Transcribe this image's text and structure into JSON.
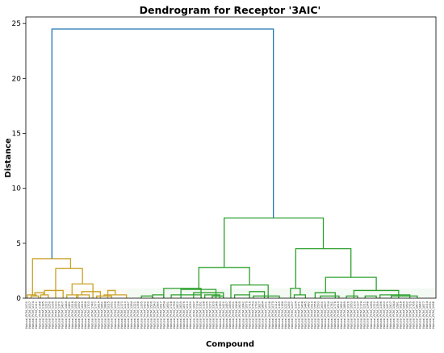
{
  "chart_data": {
    "type": "dendrogram",
    "title": "Dendrogram for Receptor '3AIC'",
    "xlabel": "Compound",
    "ylabel": "Distance",
    "ylim": [
      0,
      25.6
    ],
    "yticks": [
      0,
      5,
      10,
      15,
      20,
      25
    ],
    "grid": false,
    "leaf_label_prefix": "Natural_PCM_",
    "n_leaves": 125,
    "clusters": [
      {
        "color": "#c9a227",
        "leaf_range": [
          0,
          30
        ],
        "top_merge": 3.6
      },
      {
        "color": "#2ca02c",
        "leaf_range": [
          31,
          124
        ],
        "top_merge": 7.3
      }
    ],
    "links": [
      {
        "x1": 2,
        "x2": 14,
        "h": 0.3,
        "c": 0
      },
      {
        "x1": 7,
        "x2": 17,
        "h": 0.2,
        "c": 0
      },
      {
        "x1": 12,
        "x2": 24,
        "h": 0.5,
        "c": 0
      },
      {
        "x1": 20,
        "x2": 30,
        "h": 0.3,
        "c": 0
      },
      {
        "x1": 25,
        "x2": 50,
        "h": 0.7,
        "c": 0
      },
      {
        "x1": 55,
        "x2": 70,
        "h": 0.3,
        "c": 0
      },
      {
        "x1": 68,
        "x2": 85,
        "h": 0.3,
        "c": 0
      },
      {
        "x1": 75,
        "x2": 100,
        "h": 0.6,
        "c": 0
      },
      {
        "x1": 62,
        "x2": 90,
        "h": 1.3,
        "c": 0
      },
      {
        "x1": 95,
        "x2": 115,
        "h": 0.2,
        "c": 0
      },
      {
        "x1": 105,
        "x2": 135,
        "h": 0.3,
        "c": 0
      },
      {
        "x1": 110,
        "x2": 120,
        "h": 0.7,
        "c": 0
      },
      {
        "x1": 40,
        "x2": 76,
        "h": 2.7,
        "c": 0
      },
      {
        "x1": 9,
        "x2": 60,
        "h": 3.6,
        "c": 0
      },
      {
        "x1": 155,
        "x2": 170,
        "h": 0.2,
        "c": 1
      },
      {
        "x1": 170,
        "x2": 185,
        "h": 0.3,
        "c": 1
      },
      {
        "x1": 185,
        "x2": 235,
        "h": 0.9,
        "c": 1
      },
      {
        "x1": 195,
        "x2": 235,
        "h": 0.3,
        "c": 1
      },
      {
        "x1": 225,
        "x2": 265,
        "h": 0.5,
        "c": 1
      },
      {
        "x1": 240,
        "x2": 260,
        "h": 0.3,
        "c": 1
      },
      {
        "x1": 250,
        "x2": 265,
        "h": 0.2,
        "c": 1
      },
      {
        "x1": 208,
        "x2": 255,
        "h": 0.8,
        "c": 1
      },
      {
        "x1": 275,
        "x2": 325,
        "h": 1.2,
        "c": 1
      },
      {
        "x1": 280,
        "x2": 300,
        "h": 0.3,
        "c": 1
      },
      {
        "x1": 300,
        "x2": 320,
        "h": 0.6,
        "c": 1
      },
      {
        "x1": 305,
        "x2": 340,
        "h": 0.2,
        "c": 1
      },
      {
        "x1": 232,
        "x2": 300,
        "h": 2.8,
        "c": 1
      },
      {
        "x1": 355,
        "x2": 368,
        "h": 0.9,
        "c": 1
      },
      {
        "x1": 360,
        "x2": 375,
        "h": 0.3,
        "c": 1
      },
      {
        "x1": 388,
        "x2": 415,
        "h": 0.5,
        "c": 1
      },
      {
        "x1": 395,
        "x2": 420,
        "h": 0.2,
        "c": 1
      },
      {
        "x1": 430,
        "x2": 445,
        "h": 0.2,
        "c": 1
      },
      {
        "x1": 440,
        "x2": 500,
        "h": 0.7,
        "c": 1
      },
      {
        "x1": 455,
        "x2": 470,
        "h": 0.2,
        "c": 1
      },
      {
        "x1": 475,
        "x2": 515,
        "h": 0.3,
        "c": 1
      },
      {
        "x1": 490,
        "x2": 525,
        "h": 0.2,
        "c": 1
      },
      {
        "x1": 402,
        "x2": 470,
        "h": 1.9,
        "c": 1
      },
      {
        "x1": 362,
        "x2": 436,
        "h": 4.5,
        "c": 1
      },
      {
        "x1": 266,
        "x2": 399,
        "h": 7.3,
        "c": 1
      },
      {
        "x1": 35,
        "x2": 332,
        "h": 24.5,
        "c": 2
      }
    ]
  }
}
